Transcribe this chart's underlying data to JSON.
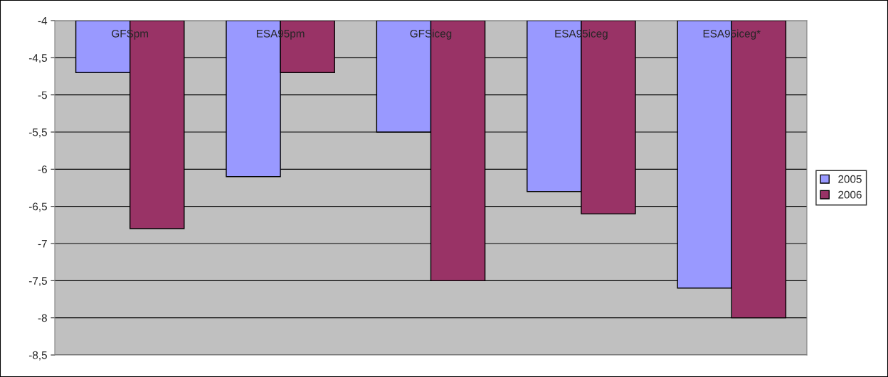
{
  "chart_data": {
    "type": "bar",
    "categories": [
      "GFSpm",
      "ESA95pm",
      "GFSiceg",
      "ESA95iceg",
      "ESA95iceg*"
    ],
    "series": [
      {
        "name": "2005",
        "color": "#9999ff",
        "values": [
          -4.7,
          -6.1,
          -5.5,
          -6.3,
          -7.6
        ]
      },
      {
        "name": "2006",
        "color": "#993366",
        "values": [
          -6.8,
          -4.7,
          -7.5,
          -6.6,
          -8.0
        ]
      }
    ],
    "ylim": [
      -8.5,
      -4
    ],
    "yticks": [
      {
        "value": -8.5,
        "label": "-8,5"
      },
      -8,
      {
        "value": -7.5,
        "label": "-7,5"
      },
      -7,
      {
        "value": -6.5,
        "label": "-6,5"
      },
      -6,
      {
        "value": -5.5,
        "label": "-5,5"
      },
      -5,
      {
        "value": -4.5,
        "label": "-4,5"
      },
      -4
    ],
    "grid": "y",
    "legend": "right"
  }
}
